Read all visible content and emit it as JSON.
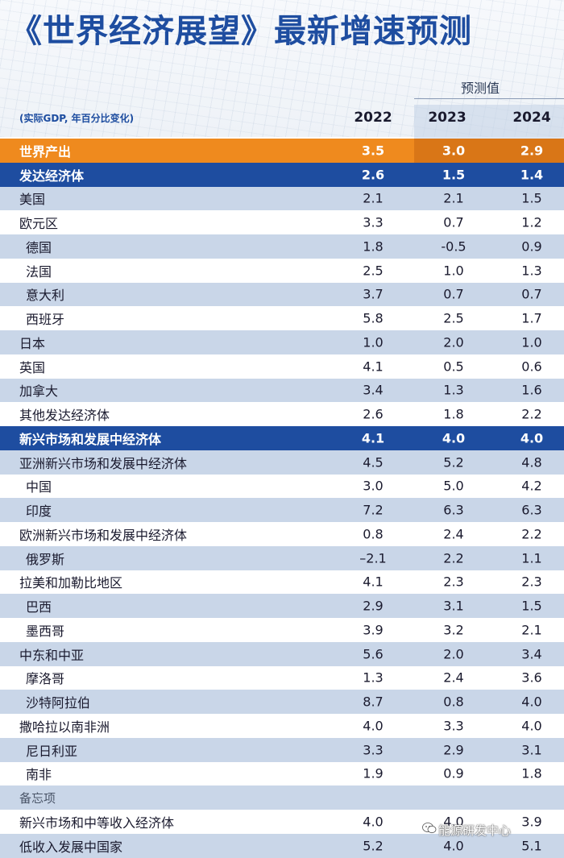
{
  "title": "《世界经济展望》最新增速预测",
  "forecast_label": "预测值",
  "units": "(实际GDP, 年百分比变化)",
  "columns": [
    "2022",
    "2023",
    "2024"
  ],
  "rows": [
    {
      "label": "世界产出",
      "style": "world",
      "values": [
        "3.5",
        "3.0",
        "2.9"
      ]
    },
    {
      "label": "发达经济体",
      "style": "group",
      "values": [
        "2.6",
        "1.5",
        "1.4"
      ]
    },
    {
      "label": "美国",
      "style": "alt",
      "values": [
        "2.1",
        "2.1",
        "1.5"
      ]
    },
    {
      "label": "欧元区",
      "style": "plain",
      "values": [
        "3.3",
        "0.7",
        "1.2"
      ]
    },
    {
      "label": "德国",
      "style": "alt",
      "indent": true,
      "values": [
        "1.8",
        "-0.5",
        "0.9"
      ]
    },
    {
      "label": "法国",
      "style": "plain",
      "indent": true,
      "values": [
        "2.5",
        "1.0",
        "1.3"
      ]
    },
    {
      "label": "意大利",
      "style": "alt",
      "indent": true,
      "values": [
        "3.7",
        "0.7",
        "0.7"
      ]
    },
    {
      "label": "西班牙",
      "style": "plain",
      "indent": true,
      "values": [
        "5.8",
        "2.5",
        "1.7"
      ]
    },
    {
      "label": "日本",
      "style": "alt",
      "values": [
        "1.0",
        "2.0",
        "1.0"
      ]
    },
    {
      "label": "英国",
      "style": "plain",
      "values": [
        "4.1",
        "0.5",
        "0.6"
      ]
    },
    {
      "label": "加拿大",
      "style": "alt",
      "values": [
        "3.4",
        "1.3",
        "1.6"
      ]
    },
    {
      "label": "其他发达经济体",
      "style": "plain",
      "values": [
        "2.6",
        "1.8",
        "2.2"
      ]
    },
    {
      "label": "新兴市场和发展中经济体",
      "style": "group",
      "values": [
        "4.1",
        "4.0",
        "4.0"
      ]
    },
    {
      "label": "亚洲新兴市场和发展中经济体",
      "style": "alt",
      "values": [
        "4.5",
        "5.2",
        "4.8"
      ]
    },
    {
      "label": "中国",
      "style": "plain",
      "indent": true,
      "values": [
        "3.0",
        "5.0",
        "4.2"
      ]
    },
    {
      "label": "印度",
      "style": "alt",
      "indent": true,
      "values": [
        "7.2",
        "6.3",
        "6.3"
      ]
    },
    {
      "label": "欧洲新兴市场和发展中经济体",
      "style": "plain",
      "values": [
        "0.8",
        "2.4",
        "2.2"
      ]
    },
    {
      "label": "俄罗斯",
      "style": "alt",
      "indent": true,
      "values": [
        "–2.1",
        "2.2",
        "1.1"
      ]
    },
    {
      "label": "拉美和加勒比地区",
      "style": "plain",
      "values": [
        "4.1",
        "2.3",
        "2.3"
      ]
    },
    {
      "label": "巴西",
      "style": "alt",
      "indent": true,
      "values": [
        "2.9",
        "3.1",
        "1.5"
      ]
    },
    {
      "label": "墨西哥",
      "style": "plain",
      "indent": true,
      "values": [
        "3.9",
        "3.2",
        "2.1"
      ]
    },
    {
      "label": "中东和中亚",
      "style": "alt",
      "values": [
        "5.6",
        "2.0",
        "3.4"
      ]
    },
    {
      "label": "摩洛哥",
      "style": "plain",
      "indent": true,
      "values": [
        "1.3",
        "2.4",
        "3.6"
      ]
    },
    {
      "label": "沙特阿拉伯",
      "style": "alt",
      "indent": true,
      "values": [
        "8.7",
        "0.8",
        "4.0"
      ]
    },
    {
      "label": "撒哈拉以南非洲",
      "style": "plain",
      "values": [
        "4.0",
        "3.3",
        "4.0"
      ]
    },
    {
      "label": "尼日利亚",
      "style": "alt",
      "indent": true,
      "values": [
        "3.3",
        "2.9",
        "3.1"
      ]
    },
    {
      "label": "南非",
      "style": "plain",
      "indent": true,
      "values": [
        "1.9",
        "0.9",
        "1.8"
      ]
    },
    {
      "label": "备忘项",
      "style": "memo",
      "values": [
        "",
        "",
        ""
      ]
    },
    {
      "label": "新兴市场和中等收入经济体",
      "style": "plain",
      "values": [
        "4.0",
        "4.0",
        "3.9"
      ]
    },
    {
      "label": "低收入发展中国家",
      "style": "alt",
      "values": [
        "5.2",
        "4.0",
        "5.1"
      ]
    }
  ],
  "watermark": "能源研发中心",
  "watermark_icon": "wechat-icon"
}
